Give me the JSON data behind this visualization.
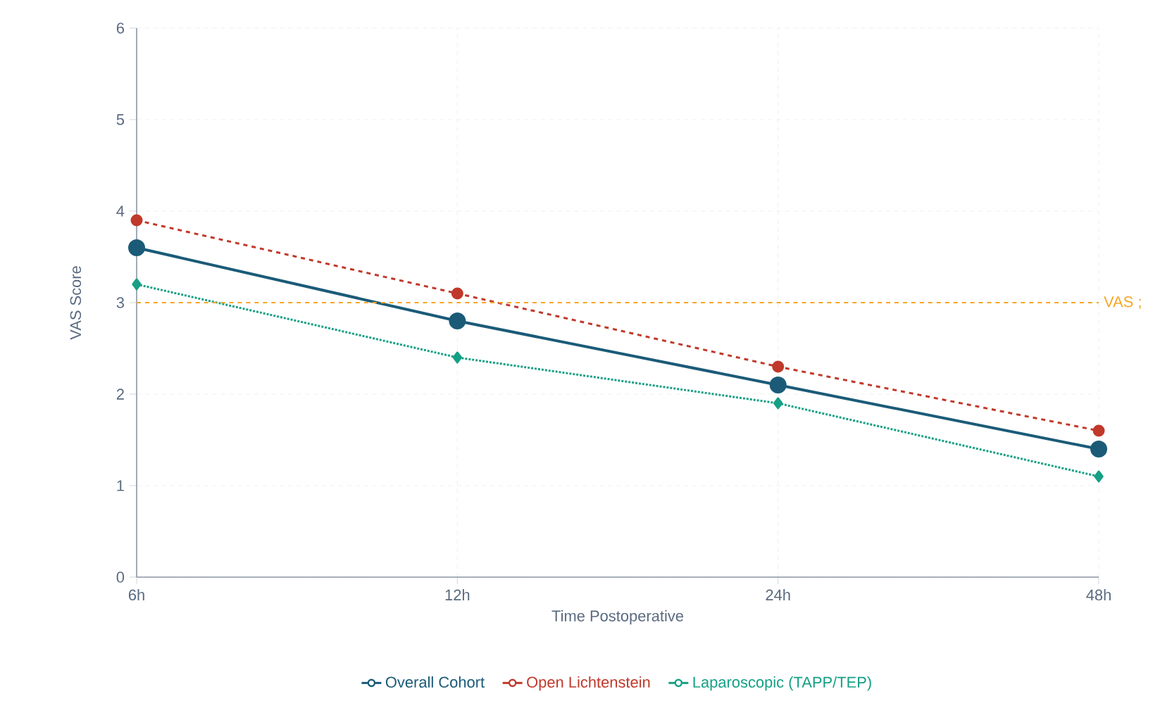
{
  "chart_data": {
    "type": "line",
    "xlabel": "Time Postoperative",
    "ylabel": "VAS Score",
    "categories": [
      "6h",
      "12h",
      "24h",
      "48h"
    ],
    "series": [
      {
        "name": "Overall Cohort",
        "color": "#1b5b78",
        "values": [
          3.6,
          2.8,
          2.1,
          1.4
        ],
        "line_style": "solid",
        "marker": "circle"
      },
      {
        "name": "Open Lichtenstein",
        "color": "#c0392b",
        "values": [
          3.9,
          3.1,
          2.3,
          1.6
        ],
        "line_style": "dashed",
        "marker": "circle"
      },
      {
        "name": "Laparoscopic (TAPP/TEP)",
        "color": "#16a085",
        "values": [
          3.2,
          2.4,
          1.9,
          1.1
        ],
        "line_style": "dotted",
        "marker": "diamond"
      }
    ],
    "ylim": [
      0,
      6
    ],
    "yticks": [
      0,
      1,
      2,
      3,
      4,
      5,
      6
    ],
    "ref_lines": [
      {
        "axis": "y",
        "value": 3,
        "label": "VAS ;",
        "color": "#f5a623",
        "line_style": "dashed"
      }
    ],
    "grid": true,
    "legend": "bottom"
  }
}
